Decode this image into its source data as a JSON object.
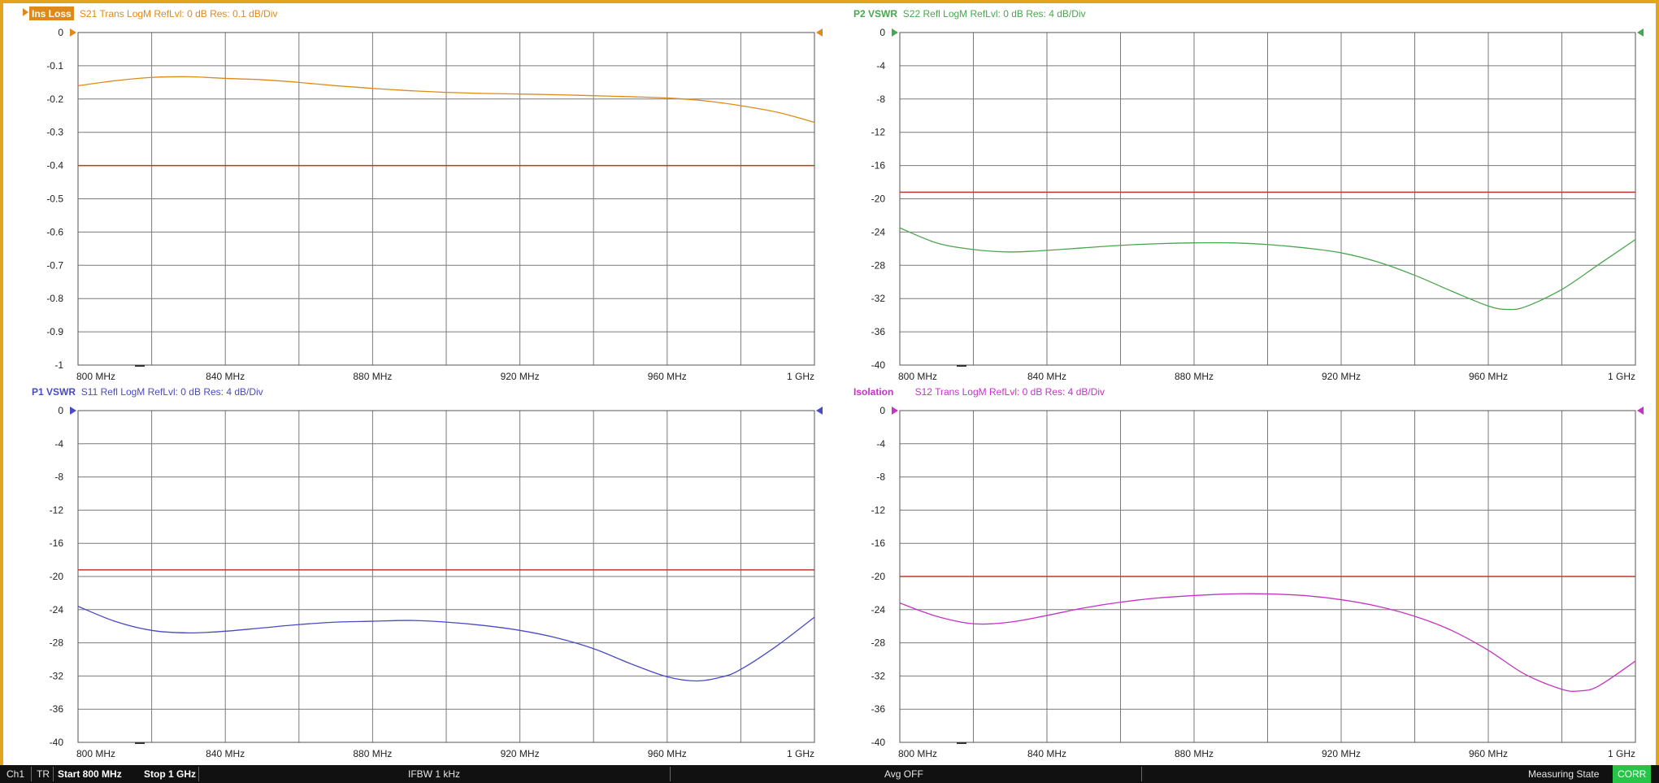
{
  "colors": {
    "frame": "#e2a41c",
    "grid": "#7a7a7a",
    "limit_line": "#c0392b",
    "statusbar_bg": "#111111",
    "corr_bg": "#27c44a"
  },
  "chart_data": [
    {
      "type": "line",
      "trace_name": "Ins Loss",
      "header": "S21 Trans LogM RefLvl: 0  dB Res: 0.1  dB/Div",
      "color": "#de8a1a",
      "name_style": "badge",
      "marker_icon": "triangle-right-icon",
      "ylim": [
        -1,
        0
      ],
      "yticks": [
        "0",
        "-0.1",
        "-0.2",
        "-0.3",
        "-0.4",
        "-0.5",
        "-0.6",
        "-0.7",
        "-0.8",
        "-0.9",
        "-1"
      ],
      "xlim_mhz": [
        800,
        1000
      ],
      "xticks": [
        "800 MHz",
        "840 MHz",
        "880 MHz",
        "920 MHz",
        "960 MHz",
        "1 GHz"
      ],
      "grid": true,
      "limit_line_db": -0.4,
      "series": [
        {
          "x_mhz": [
            800,
            810,
            820,
            830,
            840,
            850,
            860,
            870,
            880,
            890,
            900,
            910,
            920,
            930,
            940,
            950,
            960,
            970,
            980,
            990,
            1000
          ],
          "y_db": [
            -0.16,
            -0.145,
            -0.135,
            -0.133,
            -0.138,
            -0.142,
            -0.15,
            -0.16,
            -0.168,
            -0.175,
            -0.18,
            -0.183,
            -0.185,
            -0.187,
            -0.19,
            -0.193,
            -0.197,
            -0.205,
            -0.22,
            -0.24,
            -0.27
          ]
        }
      ]
    },
    {
      "type": "line",
      "trace_name": "P2 VSWR",
      "header": "S22 Refl LogM RefLvl: 0  dB Res: 4  dB/Div",
      "color": "#4aa64e",
      "name_style": "text",
      "marker_icon": "triangle-right-icon",
      "ylim": [
        -40,
        0
      ],
      "yticks": [
        "0",
        "-4",
        "-8",
        "-12",
        "-16",
        "-20",
        "-24",
        "-28",
        "-32",
        "-36",
        "-40"
      ],
      "xlim_mhz": [
        800,
        1000
      ],
      "xticks": [
        "800 MHz",
        "840 MHz",
        "880 MHz",
        "920 MHz",
        "960 MHz",
        "1 GHz"
      ],
      "grid": true,
      "limit_line_db": -19.2,
      "series": [
        {
          "x_mhz": [
            800,
            810,
            820,
            830,
            840,
            850,
            860,
            870,
            880,
            890,
            900,
            910,
            920,
            930,
            940,
            950,
            960,
            965,
            970,
            980,
            990,
            1000
          ],
          "y_db": [
            -23.5,
            -25.3,
            -26.1,
            -26.4,
            -26.2,
            -25.9,
            -25.6,
            -25.4,
            -25.3,
            -25.3,
            -25.5,
            -25.9,
            -26.5,
            -27.6,
            -29.2,
            -31.1,
            -32.9,
            -33.3,
            -33.0,
            -30.9,
            -27.9,
            -24.9
          ]
        }
      ]
    },
    {
      "type": "line",
      "trace_name": "P1 VSWR",
      "header": "S11 Refl LogM RefLvl: 0  dB Res: 4  dB/Div",
      "color": "#4a4ac4",
      "name_style": "text",
      "marker_icon": "triangle-right-icon",
      "ylim": [
        -40,
        0
      ],
      "yticks": [
        "0",
        "-4",
        "-8",
        "-12",
        "-16",
        "-20",
        "-24",
        "-28",
        "-32",
        "-36",
        "-40"
      ],
      "xlim_mhz": [
        800,
        1000
      ],
      "xticks": [
        "800 MHz",
        "840 MHz",
        "880 MHz",
        "920 MHz",
        "960 MHz",
        "1 GHz"
      ],
      "grid": true,
      "limit_line_db": -19.2,
      "series": [
        {
          "x_mhz": [
            800,
            810,
            820,
            830,
            840,
            850,
            860,
            870,
            880,
            890,
            900,
            910,
            920,
            930,
            940,
            950,
            960,
            968,
            975,
            980,
            990,
            1000
          ],
          "y_db": [
            -23.6,
            -25.4,
            -26.5,
            -26.8,
            -26.6,
            -26.2,
            -25.8,
            -25.5,
            -25.4,
            -25.3,
            -25.5,
            -25.9,
            -26.5,
            -27.4,
            -28.7,
            -30.5,
            -32.1,
            -32.6,
            -32.1,
            -31.2,
            -28.3,
            -24.9
          ]
        }
      ]
    },
    {
      "type": "line",
      "trace_name": "Isolation",
      "header": "S12 Trans LogM RefLvl: 0  dB Res: 4  dB/Div",
      "color": "#c433c4",
      "name_style": "text",
      "marker_icon": "triangle-right-icon",
      "ylim": [
        -40,
        0
      ],
      "yticks": [
        "0",
        "-4",
        "-8",
        "-12",
        "-16",
        "-20",
        "-24",
        "-28",
        "-32",
        "-36",
        "-40"
      ],
      "xlim_mhz": [
        800,
        1000
      ],
      "xticks": [
        "800 MHz",
        "840 MHz",
        "880 MHz",
        "920 MHz",
        "960 MHz",
        "1 GHz"
      ],
      "grid": true,
      "limit_line_db": -20,
      "series": [
        {
          "x_mhz": [
            800,
            810,
            820,
            830,
            840,
            850,
            860,
            870,
            880,
            890,
            900,
            910,
            920,
            930,
            940,
            950,
            960,
            970,
            980,
            985,
            990,
            1000
          ],
          "y_db": [
            -23.2,
            -24.8,
            -25.7,
            -25.5,
            -24.7,
            -23.8,
            -23.1,
            -22.6,
            -22.3,
            -22.1,
            -22.1,
            -22.3,
            -22.8,
            -23.6,
            -24.8,
            -26.5,
            -28.9,
            -31.8,
            -33.6,
            -33.8,
            -33.2,
            -30.2
          ]
        }
      ]
    }
  ],
  "statusbar": {
    "channel": "Ch1",
    "mode": "TR",
    "start": "Start 800 MHz",
    "stop": "Stop 1 GHz",
    "ifbw": "IFBW 1 kHz",
    "avg": "Avg OFF",
    "state": "Measuring State",
    "corr": "CORR"
  }
}
